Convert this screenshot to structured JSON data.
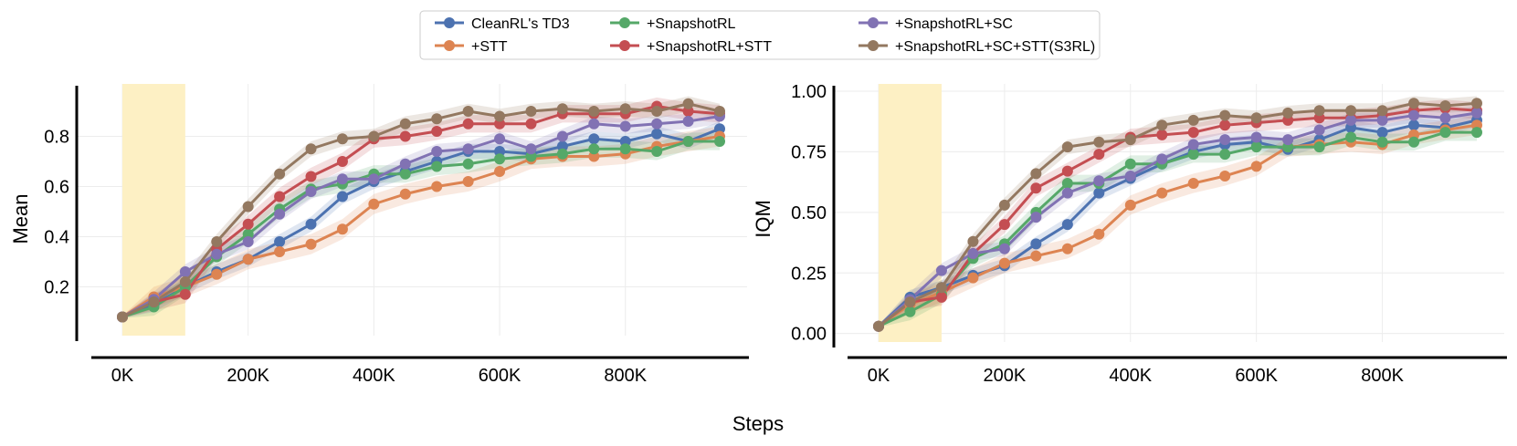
{
  "chart_data": {
    "type": "line",
    "xlabel": "Steps",
    "x": [
      0,
      50000,
      100000,
      150000,
      200000,
      250000,
      300000,
      350000,
      400000,
      450000,
      500000,
      550000,
      600000,
      650000,
      700000,
      750000,
      800000,
      850000,
      900000,
      950000
    ],
    "xlim": [
      0,
      950000
    ],
    "xticks": [
      0,
      200000,
      400000,
      600000,
      800000
    ],
    "xtick_labels": [
      "0K",
      "200K",
      "400K",
      "600K",
      "800K"
    ],
    "highlight_region": [
      0,
      100000
    ],
    "legend": [
      {
        "name": "CleanRL's TD3",
        "color": "#4C72B0"
      },
      {
        "name": "+STT",
        "color": "#DD8452"
      },
      {
        "name": "+SnapshotRL",
        "color": "#55A868"
      },
      {
        "name": "+SnapshotRL+STT",
        "color": "#C44E52"
      },
      {
        "name": "+SnapshotRL+SC",
        "color": "#8172B3"
      },
      {
        "name": "+SnapshotRL+SC+STT(S3RL)",
        "color": "#937860"
      }
    ],
    "panels": [
      {
        "ylabel": "Mean",
        "ylim": [
          0.02,
          0.98
        ],
        "yticks": [
          0.2,
          0.4,
          0.6,
          0.8
        ],
        "ytick_labels": [
          "0.2",
          "0.4",
          "0.6",
          "0.8"
        ],
        "series": [
          {
            "name": "CleanRL's TD3",
            "values": [
              0.08,
              0.13,
              0.2,
              0.26,
              0.31,
              0.38,
              0.45,
              0.56,
              0.62,
              0.66,
              0.7,
              0.74,
              0.74,
              0.73,
              0.76,
              0.79,
              0.78,
              0.81,
              0.78,
              0.83
            ],
            "band": 0.03
          },
          {
            "name": "+STT",
            "values": [
              0.08,
              0.16,
              0.2,
              0.25,
              0.31,
              0.34,
              0.37,
              0.43,
              0.53,
              0.57,
              0.6,
              0.62,
              0.66,
              0.71,
              0.72,
              0.72,
              0.73,
              0.76,
              0.78,
              0.8
            ],
            "band": 0.04
          },
          {
            "name": "+SnapshotRL",
            "values": [
              0.08,
              0.12,
              0.2,
              0.32,
              0.41,
              0.51,
              0.59,
              0.61,
              0.65,
              0.65,
              0.68,
              0.69,
              0.71,
              0.72,
              0.73,
              0.75,
              0.75,
              0.74,
              0.78,
              0.78
            ],
            "band": 0.035
          },
          {
            "name": "+SnapshotRL+STT",
            "values": [
              0.08,
              0.14,
              0.17,
              0.35,
              0.45,
              0.56,
              0.64,
              0.7,
              0.79,
              0.8,
              0.82,
              0.85,
              0.85,
              0.85,
              0.89,
              0.89,
              0.89,
              0.92,
              0.9,
              0.89
            ],
            "band": 0.035
          },
          {
            "name": "+SnapshotRL+SC",
            "values": [
              0.08,
              0.15,
              0.26,
              0.33,
              0.38,
              0.49,
              0.58,
              0.63,
              0.63,
              0.69,
              0.74,
              0.75,
              0.79,
              0.75,
              0.8,
              0.85,
              0.84,
              0.85,
              0.86,
              0.88
            ],
            "band": 0.03
          },
          {
            "name": "+SnapshotRL+SC+STT(S3RL)",
            "values": [
              0.08,
              0.14,
              0.22,
              0.38,
              0.52,
              0.65,
              0.75,
              0.79,
              0.8,
              0.85,
              0.87,
              0.9,
              0.88,
              0.9,
              0.91,
              0.9,
              0.91,
              0.9,
              0.93,
              0.9
            ],
            "band": 0.03
          }
        ]
      },
      {
        "ylabel": "IQM",
        "ylim": [
          -0.02,
          1.0
        ],
        "yticks": [
          0.0,
          0.25,
          0.5,
          0.75,
          1.0
        ],
        "ytick_labels": [
          "0.00",
          "0.25",
          "0.50",
          "0.75",
          "1.00"
        ],
        "series": [
          {
            "name": "CleanRL's TD3",
            "values": [
              0.03,
              0.15,
              0.19,
              0.24,
              0.28,
              0.37,
              0.45,
              0.58,
              0.64,
              0.7,
              0.75,
              0.78,
              0.79,
              0.76,
              0.8,
              0.85,
              0.83,
              0.86,
              0.85,
              0.88
            ],
            "band": 0.03
          },
          {
            "name": "+STT",
            "values": [
              0.03,
              0.12,
              0.17,
              0.23,
              0.29,
              0.32,
              0.35,
              0.41,
              0.53,
              0.58,
              0.62,
              0.65,
              0.69,
              0.77,
              0.78,
              0.79,
              0.78,
              0.82,
              0.84,
              0.86
            ],
            "band": 0.04
          },
          {
            "name": "+SnapshotRL",
            "values": [
              0.03,
              0.09,
              0.16,
              0.31,
              0.37,
              0.5,
              0.62,
              0.62,
              0.7,
              0.7,
              0.74,
              0.74,
              0.77,
              0.77,
              0.77,
              0.81,
              0.79,
              0.79,
              0.83,
              0.83
            ],
            "band": 0.035
          },
          {
            "name": "+SnapshotRL+STT",
            "values": [
              0.03,
              0.13,
              0.15,
              0.33,
              0.45,
              0.6,
              0.67,
              0.74,
              0.81,
              0.82,
              0.83,
              0.86,
              0.87,
              0.88,
              0.89,
              0.89,
              0.9,
              0.92,
              0.93,
              0.92
            ],
            "band": 0.035
          },
          {
            "name": "+SnapshotRL+SC",
            "values": [
              0.03,
              0.14,
              0.26,
              0.33,
              0.35,
              0.48,
              0.58,
              0.63,
              0.65,
              0.72,
              0.78,
              0.8,
              0.81,
              0.8,
              0.84,
              0.88,
              0.88,
              0.9,
              0.89,
              0.91
            ],
            "band": 0.03
          },
          {
            "name": "+SnapshotRL+SC+STT(S3RL)",
            "values": [
              0.03,
              0.13,
              0.19,
              0.38,
              0.53,
              0.66,
              0.77,
              0.79,
              0.8,
              0.86,
              0.88,
              0.9,
              0.89,
              0.91,
              0.92,
              0.92,
              0.92,
              0.95,
              0.94,
              0.95
            ],
            "band": 0.03
          }
        ]
      }
    ]
  }
}
